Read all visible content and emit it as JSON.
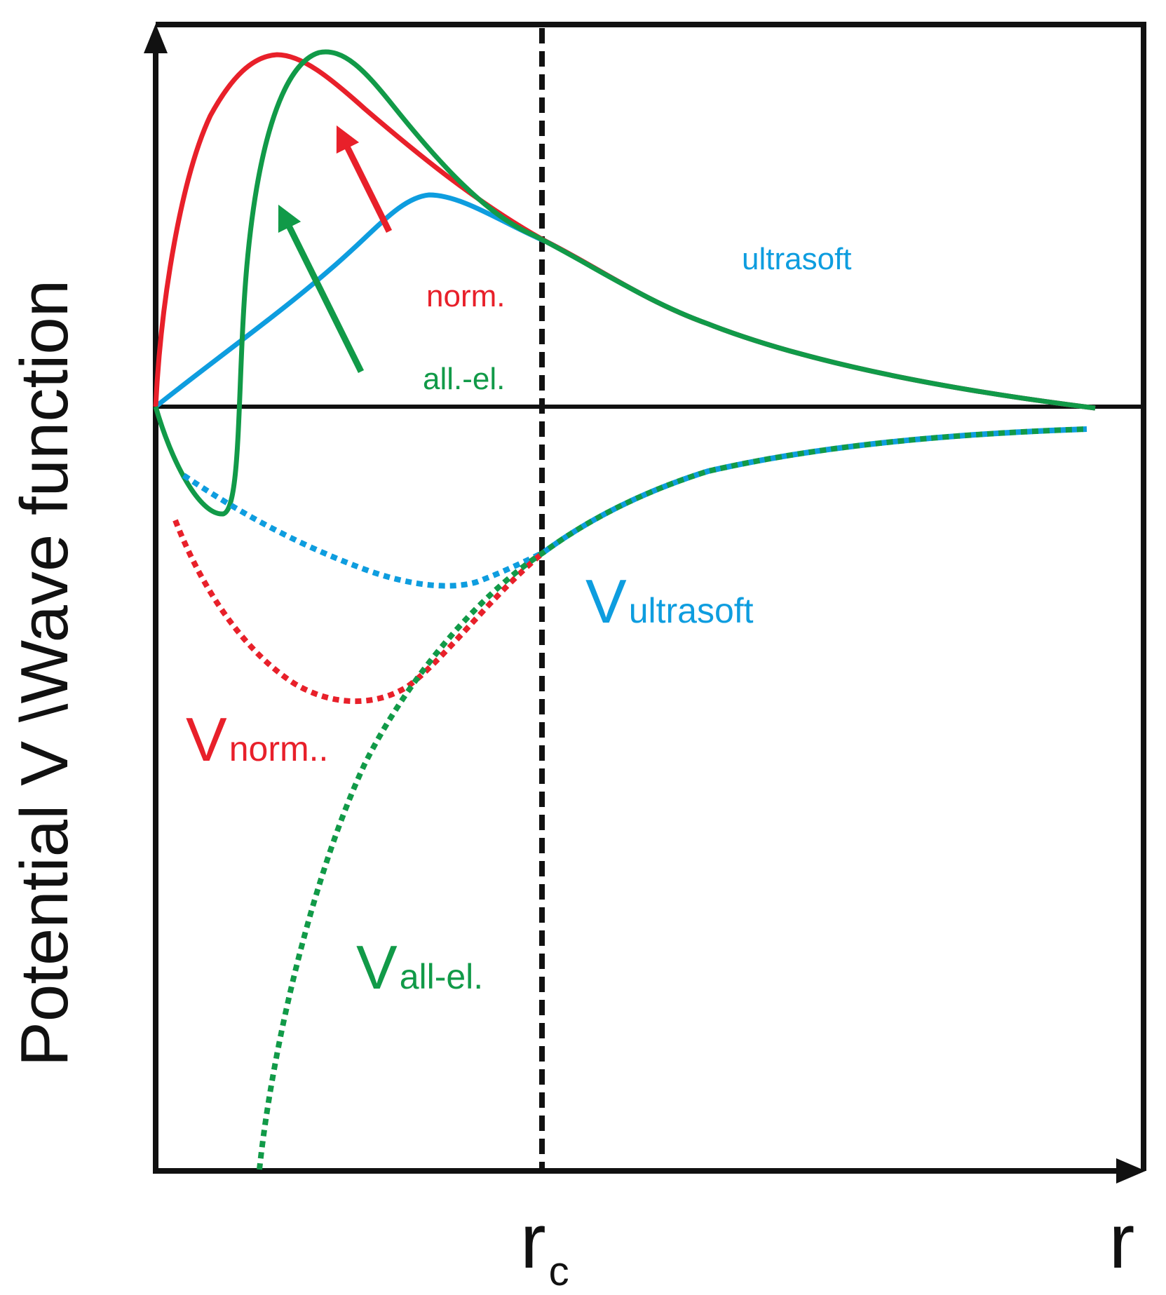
{
  "axes": {
    "ylabel": "Potential V \\Wave function",
    "xlabel": "r",
    "cutoff_label_main": "r",
    "cutoff_label_sub": "c"
  },
  "wavefunction_labels": {
    "ultrasoft": "ultrasoft",
    "normconserving": "norm.",
    "all_electron": "all.-el."
  },
  "potential_labels": {
    "ultrasoft": {
      "main": "V",
      "sub": "ultrasoft"
    },
    "normconserving": {
      "main": "V",
      "sub": "norm.."
    },
    "all_electron": {
      "main": "V",
      "sub": "all-el."
    }
  },
  "colors": {
    "red": "#e8202a",
    "green": "#119a48",
    "blue": "#0e9ddf",
    "black": "#111111"
  }
}
